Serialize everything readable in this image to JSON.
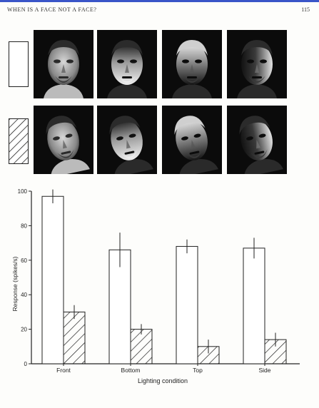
{
  "header": {
    "title": "WHEN IS A FACE NOT A FACE?",
    "page_number": "115"
  },
  "photos": {
    "rows": [
      {
        "legend_pattern": "open",
        "cells": [
          "front-lit-face-photo",
          "bottom-lit-face-photo",
          "top-lit-face-photo",
          "side-lit-face-photo"
        ]
      },
      {
        "legend_pattern": "hatched",
        "cells": [
          "front-lit-face-photo",
          "bottom-lit-face-photo",
          "top-lit-face-photo",
          "side-lit-face-photo"
        ]
      }
    ]
  },
  "chart_data": {
    "type": "bar",
    "categories": [
      "Front",
      "Bottom",
      "Top",
      "Side"
    ],
    "series": [
      {
        "pattern": "open",
        "fill": "#ffffff",
        "values": [
          97,
          66,
          68,
          67
        ],
        "errors": [
          4,
          10,
          4,
          6
        ]
      },
      {
        "pattern": "hatched",
        "fill": "hatch",
        "values": [
          30,
          20,
          10,
          14
        ],
        "errors": [
          4,
          3,
          4,
          4
        ]
      }
    ],
    "xlabel": "Lighting condition",
    "ylabel": "Response (spikes/s)",
    "ylim": [
      0,
      100
    ],
    "yticks": [
      "0",
      "20",
      "40",
      "60",
      "80",
      "100"
    ],
    "grid": false,
    "legend": "left-of-photos"
  }
}
